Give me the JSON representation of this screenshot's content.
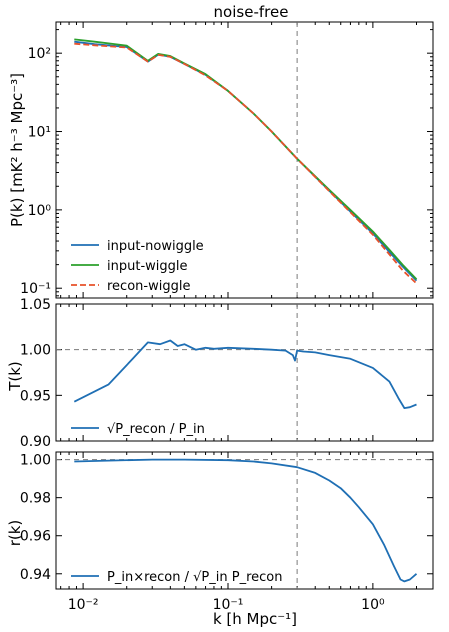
{
  "chart_data": [
    {
      "type": "line",
      "title": "noise-free",
      "ylabel": "P(k) [mK² h⁻³ Mpc⁻³]",
      "xscale": "log",
      "yscale": "log",
      "xlim": [
        0.0065,
        2.6
      ],
      "ylim": [
        0.075,
        250
      ],
      "xticks": [],
      "yticks": [
        {
          "value": 0.1,
          "label": "10⁻¹"
        },
        {
          "value": 1,
          "label": "10⁰"
        },
        {
          "value": 10,
          "label": "10¹"
        },
        {
          "value": 100,
          "label": "10²"
        }
      ],
      "vline": 0.3,
      "legend": "lower-left",
      "series": [
        {
          "name": "input-nowiggle",
          "color": "#1f6fb4",
          "style": "solid",
          "x": [
            0.0087,
            0.012,
            0.02,
            0.028,
            0.033,
            0.04,
            0.05,
            0.07,
            0.1,
            0.15,
            0.2,
            0.3,
            0.5,
            0.7,
            1.0,
            1.3,
            1.6,
            2.0
          ],
          "y": [
            140,
            130,
            120,
            78,
            96,
            90,
            73,
            53,
            33,
            17,
            10,
            4.5,
            1.75,
            0.95,
            0.5,
            0.29,
            0.19,
            0.125
          ]
        },
        {
          "name": "input-wiggle",
          "color": "#2ca02c",
          "style": "solid",
          "x": [
            0.0087,
            0.012,
            0.02,
            0.028,
            0.033,
            0.04,
            0.05,
            0.07,
            0.1,
            0.15,
            0.2,
            0.3,
            0.5,
            0.7,
            1.0,
            1.3,
            1.6,
            2.0
          ],
          "y": [
            150,
            140,
            125,
            80,
            98,
            92,
            74,
            54,
            33,
            17,
            10,
            4.5,
            1.8,
            1.0,
            0.53,
            0.31,
            0.2,
            0.13
          ]
        },
        {
          "name": "recon-wiggle",
          "color": "#e8522a",
          "style": "dashed",
          "x": [
            0.0087,
            0.012,
            0.02,
            0.028,
            0.033,
            0.04,
            0.05,
            0.07,
            0.1,
            0.15,
            0.2,
            0.3,
            0.5,
            0.7,
            1.0,
            1.3,
            1.6,
            2.0
          ],
          "y": [
            132,
            126,
            118,
            78,
            95,
            90,
            73,
            52,
            33,
            17,
            10,
            4.5,
            1.73,
            0.93,
            0.48,
            0.27,
            0.17,
            0.115
          ]
        }
      ]
    },
    {
      "type": "line",
      "ylabel": "T(k)",
      "xscale": "log",
      "xlim": [
        0.0065,
        2.6
      ],
      "ylim": [
        0.9,
        1.05
      ],
      "xticks": [],
      "yticks": [
        {
          "value": 0.9,
          "label": "0.90"
        },
        {
          "value": 0.95,
          "label": "0.95"
        },
        {
          "value": 1.0,
          "label": "1.00"
        },
        {
          "value": 1.05,
          "label": "1.05"
        }
      ],
      "hline": 1.0,
      "vline": 0.3,
      "legend": "lower-left",
      "series": [
        {
          "name": "√P_recon / P_in",
          "color": "#1f6fb4",
          "style": "solid",
          "x": [
            0.0087,
            0.015,
            0.022,
            0.028,
            0.034,
            0.04,
            0.045,
            0.05,
            0.06,
            0.07,
            0.08,
            0.1,
            0.15,
            0.2,
            0.25,
            0.28,
            0.29,
            0.3,
            0.33,
            0.4,
            0.5,
            0.7,
            1.0,
            1.3,
            1.5,
            1.65,
            1.8,
            2.0
          ],
          "y": [
            0.943,
            0.962,
            0.99,
            1.008,
            1.006,
            1.01,
            1.004,
            1.006,
            1.0,
            1.002,
            1.001,
            1.002,
            1.001,
            1.0,
            0.999,
            0.994,
            0.988,
            0.999,
            0.998,
            0.997,
            0.994,
            0.99,
            0.98,
            0.965,
            0.947,
            0.936,
            0.937,
            0.94
          ]
        }
      ]
    },
    {
      "type": "line",
      "ylabel": "r(k)",
      "xlabel": "k [h Mpc⁻¹]",
      "xscale": "log",
      "xlim": [
        0.0065,
        2.6
      ],
      "ylim": [
        0.932,
        1.004
      ],
      "xticks": [
        {
          "value": 0.01,
          "label": "10⁻²"
        },
        {
          "value": 0.1,
          "label": "10⁻¹"
        },
        {
          "value": 1,
          "label": "10⁰"
        }
      ],
      "yticks": [
        {
          "value": 0.94,
          "label": "0.94"
        },
        {
          "value": 0.96,
          "label": "0.96"
        },
        {
          "value": 0.98,
          "label": "0.98"
        },
        {
          "value": 1.0,
          "label": "1.00"
        }
      ],
      "hline": 1.0,
      "vline": 0.3,
      "legend": "lower-left",
      "series": [
        {
          "name": "P_in×recon / √P_in P_recon",
          "color": "#1f6fb4",
          "style": "solid",
          "x": [
            0.0087,
            0.015,
            0.03,
            0.05,
            0.1,
            0.15,
            0.2,
            0.3,
            0.4,
            0.5,
            0.6,
            0.7,
            0.8,
            1.0,
            1.2,
            1.4,
            1.55,
            1.65,
            1.8,
            2.0
          ],
          "y": [
            0.999,
            0.9995,
            1.0,
            1.0,
            0.9997,
            0.999,
            0.998,
            0.996,
            0.993,
            0.989,
            0.985,
            0.98,
            0.975,
            0.966,
            0.955,
            0.944,
            0.937,
            0.936,
            0.937,
            0.94
          ]
        }
      ]
    }
  ]
}
